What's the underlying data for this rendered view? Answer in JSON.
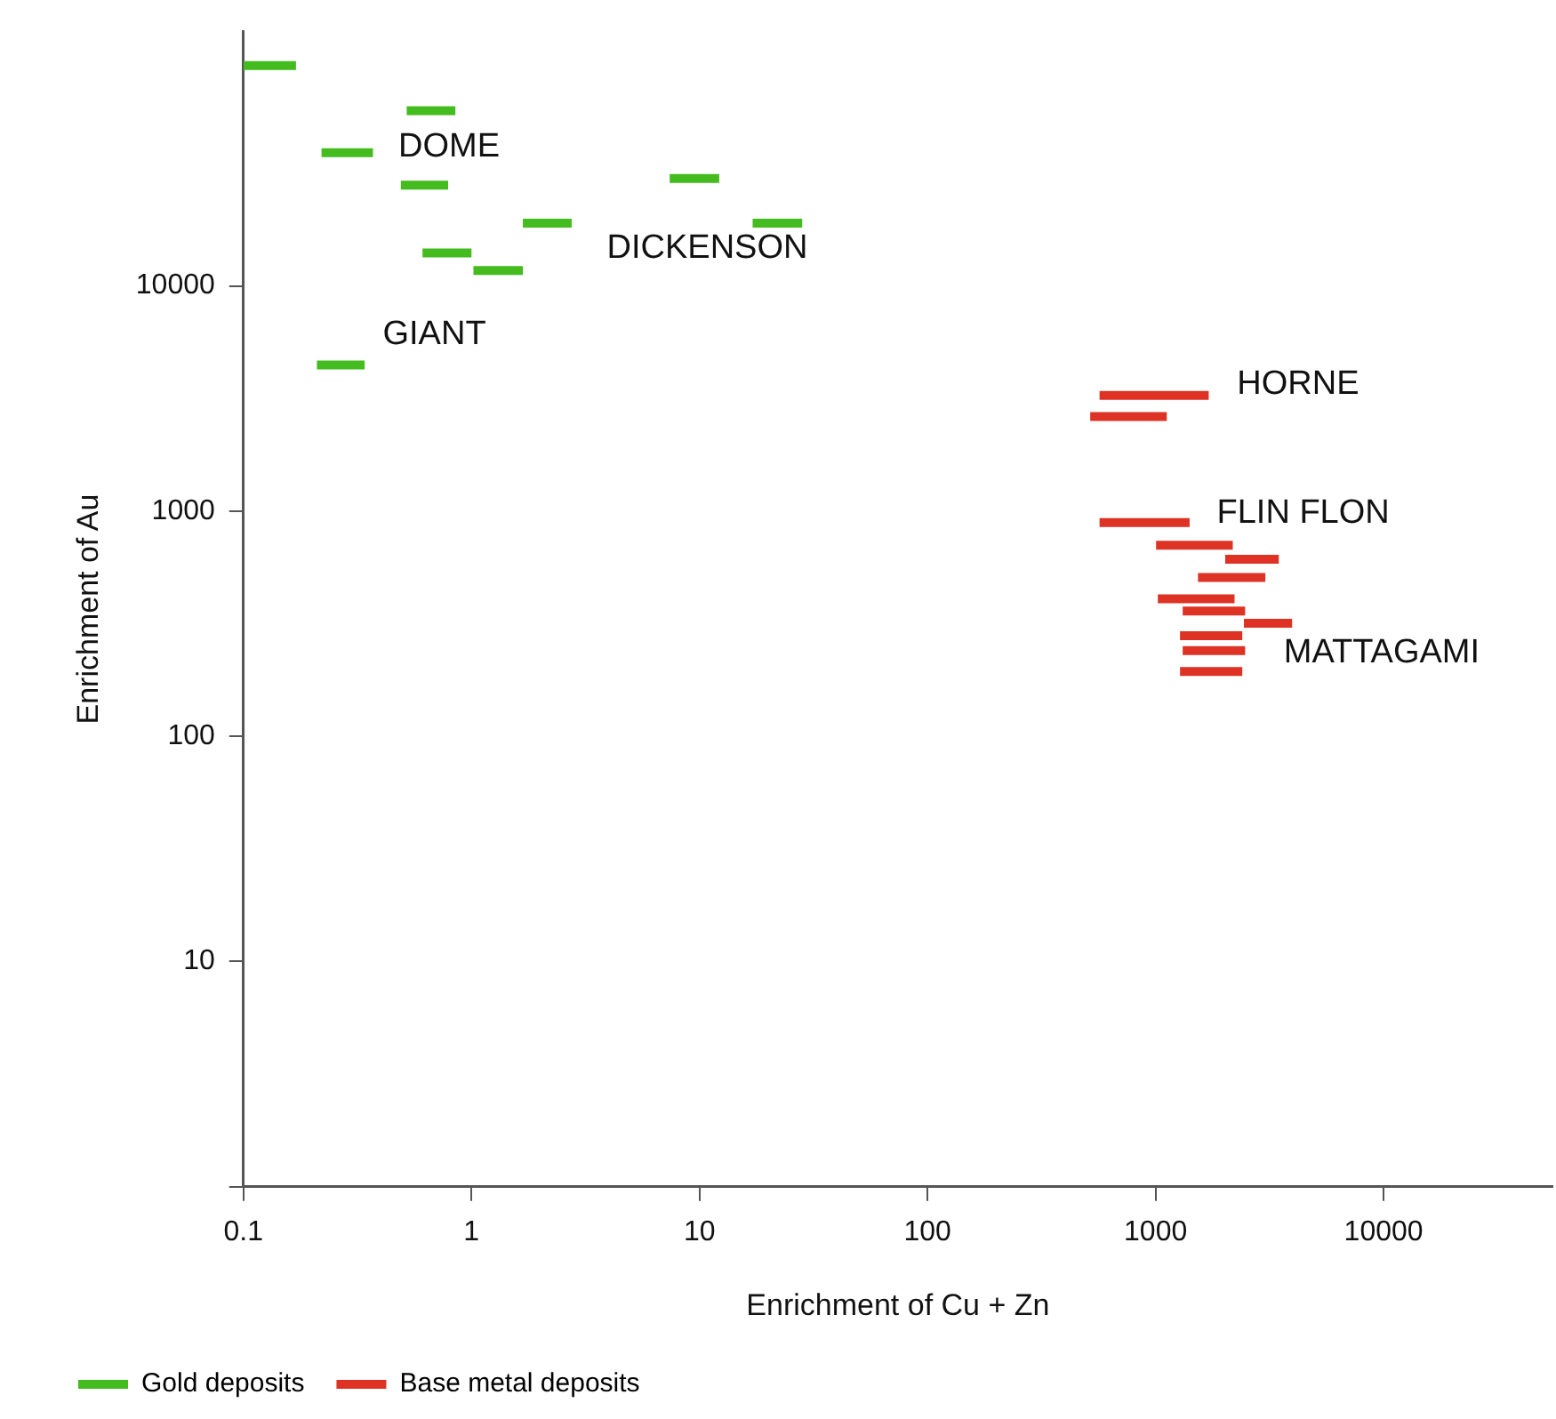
{
  "chart_data": {
    "type": "line",
    "xlabel": "Enrichment of Cu + Zn",
    "ylabel": "Enrichment of Au",
    "log": "xy",
    "grid": false,
    "legend": "bottom",
    "marker": "none",
    "xlim": [
      0.1,
      55000
    ],
    "ylim": [
      1,
      135000
    ],
    "xticks": [
      0.1,
      1,
      10,
      100,
      1000,
      10000
    ],
    "yticks": [
      {
        "value": 1,
        "label": null
      },
      10,
      100,
      1000,
      10000
    ],
    "series": [
      {
        "name": "Gold deposits",
        "color": "#44bb1e",
        "x": [
          0.1,
          0.17
        ],
        "values": [
          95000,
          95000
        ]
      },
      {
        "color": "#44bb1e",
        "x": [
          0.52,
          0.85
        ],
        "values": [
          60000,
          60000
        ]
      },
      {
        "color": "#44bb1e",
        "x": [
          0.22,
          0.37
        ],
        "values": [
          39000,
          39000
        ]
      },
      {
        "color": "#44bb1e",
        "x": [
          0.49,
          0.79
        ],
        "values": [
          28000,
          28000
        ]
      },
      {
        "color": "#44bb1e",
        "x": [
          1.68,
          2.75
        ],
        "values": [
          19000,
          19000
        ]
      },
      {
        "color": "#44bb1e",
        "x": [
          7.4,
          12.2
        ],
        "values": [
          30000,
          30000
        ]
      },
      {
        "color": "#44bb1e",
        "x": [
          17.1,
          28.2
        ],
        "values": [
          19000,
          19000
        ]
      },
      {
        "color": "#44bb1e",
        "x": [
          0.61,
          1.0
        ],
        "values": [
          14000,
          14000
        ]
      },
      {
        "color": "#44bb1e",
        "x": [
          1.02,
          1.68
        ],
        "values": [
          11700,
          11700
        ]
      },
      {
        "color": "#44bb1e",
        "x": [
          0.21,
          0.34
        ],
        "values": [
          4450,
          4450
        ]
      },
      {
        "name": "Base metal deposits",
        "color": "#dd3224",
        "x": [
          568,
          1710
        ],
        "values": [
          3260,
          3260
        ]
      },
      {
        "color": "#dd3224",
        "x": [
          517,
          1120
        ],
        "values": [
          2630,
          2630
        ]
      },
      {
        "color": "#dd3224",
        "x": [
          568,
          1410
        ],
        "values": [
          889,
          889
        ]
      },
      {
        "color": "#dd3224",
        "x": [
          1005,
          2180
        ],
        "values": [
          705,
          705
        ]
      },
      {
        "color": "#dd3224",
        "x": [
          2020,
          3470
        ],
        "values": [
          611,
          611
        ]
      },
      {
        "color": "#dd3224",
        "x": [
          1535,
          3030
        ],
        "values": [
          507,
          507
        ]
      },
      {
        "color": "#dd3224",
        "x": [
          1023,
          2220
        ],
        "values": [
          408,
          408
        ]
      },
      {
        "color": "#dd3224",
        "x": [
          1315,
          2470
        ],
        "values": [
          360,
          360
        ]
      },
      {
        "color": "#dd3224",
        "x": [
          2440,
          3970
        ],
        "values": [
          318,
          318
        ]
      },
      {
        "color": "#dd3224",
        "x": [
          1280,
          2400
        ],
        "values": [
          280,
          280
        ]
      },
      {
        "color": "#dd3224",
        "x": [
          1315,
          2470
        ],
        "values": [
          240,
          240
        ]
      },
      {
        "color": "#dd3224",
        "x": [
          1280,
          2400
        ],
        "values": [
          194,
          194
        ]
      }
    ],
    "annotations": [
      "DOME",
      "DICKENSON",
      "GIANT",
      "HORNE",
      "FLIN FLON",
      "MATTAGAMI"
    ]
  }
}
